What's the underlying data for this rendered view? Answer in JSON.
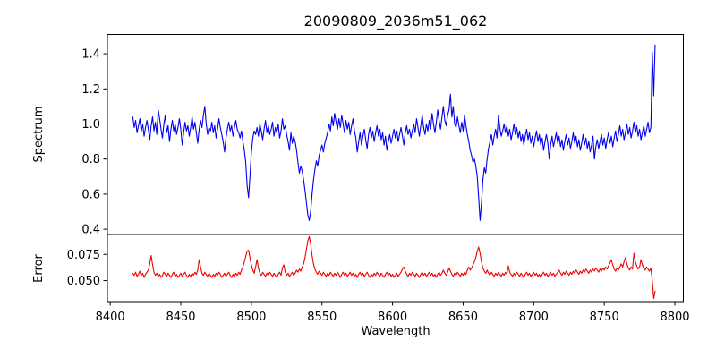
{
  "chart": {
    "title": "20090809_2036m51_062",
    "xlabel": "Wavelength",
    "ylabel_top": "Spectrum",
    "ylabel_bottom": "Error",
    "background_color": "#ffffff",
    "axes_color": "#000000",
    "spectrum_color": "#0000ee",
    "error_color": "#ee0000"
  },
  "chart_data": [
    {
      "type": "line",
      "panel": "spectrum",
      "title": "20090809_2036m51_062",
      "ylabel": "Spectrum",
      "xlabel": "",
      "legend": null,
      "grid": false,
      "line_color": "#0000ee",
      "x_start": 8416,
      "x_step": 1.0,
      "xlim": [
        8398,
        8806
      ],
      "ylim": [
        0.37,
        1.51
      ],
      "yticks": [
        0.4,
        0.6,
        0.8,
        1.0,
        1.2,
        1.4
      ],
      "ytick_labels": [
        "0.4",
        "0.6",
        "0.8",
        "1.0",
        "1.2",
        "1.4"
      ],
      "xticks": [],
      "xtick_labels": [],
      "values": [
        1.04,
        0.98,
        1.02,
        0.95,
        0.99,
        1.03,
        0.96,
        1.0,
        0.93,
        0.98,
        1.02,
        0.97,
        0.91,
        0.99,
        1.04,
        0.96,
        1.01,
        0.94,
        1.08,
        1.03,
        0.97,
        0.92,
        1.0,
        1.05,
        0.95,
        0.99,
        0.9,
        0.97,
        1.02,
        0.96,
        1.0,
        0.94,
        0.98,
        1.03,
        0.97,
        0.88,
        0.95,
        1.01,
        0.96,
        0.99,
        0.93,
        0.98,
        1.04,
        0.97,
        1.01,
        0.95,
        0.89,
        0.97,
        1.02,
        0.98,
        1.05,
        1.1,
        1.0,
        0.94,
        0.98,
        0.96,
        1.01,
        0.95,
        0.99,
        0.92,
        0.97,
        1.03,
        0.98,
        0.94,
        0.9,
        0.84,
        0.92,
        0.97,
        1.01,
        0.96,
        0.99,
        0.93,
        0.98,
        1.02,
        0.97,
        0.95,
        0.92,
        0.96,
        0.9,
        0.85,
        0.78,
        0.65,
        0.58,
        0.7,
        0.84,
        0.92,
        0.96,
        0.94,
        0.98,
        0.93,
        1.0,
        0.96,
        0.91,
        0.97,
        1.02,
        0.95,
        0.99,
        0.94,
        0.97,
        1.01,
        0.93,
        0.98,
        0.95,
        1.0,
        0.92,
        0.96,
        1.03,
        0.97,
        0.99,
        0.94,
        0.9,
        0.85,
        0.95,
        0.89,
        0.93,
        0.9,
        0.85,
        0.78,
        0.72,
        0.76,
        0.73,
        0.68,
        0.62,
        0.55,
        0.48,
        0.45,
        0.5,
        0.6,
        0.68,
        0.74,
        0.79,
        0.76,
        0.82,
        0.85,
        0.88,
        0.84,
        0.89,
        0.92,
        0.95,
        1.0,
        0.96,
        1.04,
        0.99,
        1.06,
        1.01,
        0.97,
        1.03,
        0.98,
        1.05,
        1.0,
        0.95,
        1.02,
        0.97,
        1.01,
        0.94,
        0.99,
        1.03,
        0.96,
        0.92,
        0.84,
        0.9,
        0.95,
        0.88,
        0.93,
        0.97,
        0.91,
        0.86,
        0.94,
        0.98,
        0.92,
        0.96,
        0.9,
        0.95,
        0.99,
        0.93,
        0.97,
        0.91,
        0.95,
        0.88,
        0.93,
        0.85,
        0.9,
        0.94,
        0.89,
        0.93,
        0.97,
        0.92,
        0.96,
        0.9,
        0.94,
        0.98,
        0.93,
        0.88,
        0.95,
        0.99,
        0.94,
        0.97,
        0.92,
        0.96,
        1.0,
        0.95,
        1.03,
        0.98,
        0.93,
        0.99,
        1.05,
        0.98,
        0.94,
        1.0,
        0.96,
        1.02,
        0.97,
        1.06,
        1.0,
        0.95,
        1.01,
        1.08,
        1.02,
        0.97,
        1.04,
        1.1,
        1.02,
        0.99,
        1.05,
        1.08,
        1.17,
        1.04,
        1.1,
        1.0,
        0.98,
        1.04,
        0.99,
        0.95,
        1.01,
        0.96,
        1.05,
        0.99,
        0.94,
        0.9,
        0.85,
        0.82,
        0.78,
        0.8,
        0.76,
        0.7,
        0.58,
        0.45,
        0.55,
        0.68,
        0.75,
        0.72,
        0.8,
        0.86,
        0.9,
        0.94,
        0.88,
        0.93,
        0.97,
        0.92,
        1.05,
        0.98,
        0.93,
        0.96,
        1.0,
        0.95,
        0.99,
        0.93,
        0.97,
        0.91,
        0.95,
        1.0,
        0.94,
        0.98,
        0.92,
        0.96,
        0.9,
        0.94,
        0.88,
        0.93,
        0.97,
        0.91,
        0.95,
        0.89,
        0.93,
        0.87,
        0.92,
        0.96,
        0.9,
        0.94,
        0.88,
        0.92,
        0.85,
        0.9,
        0.94,
        0.89,
        0.8,
        0.88,
        0.93,
        0.87,
        0.91,
        0.95,
        0.89,
        0.93,
        0.87,
        0.91,
        0.85,
        0.9,
        0.94,
        0.88,
        0.92,
        0.86,
        0.9,
        0.95,
        0.89,
        0.93,
        0.87,
        0.91,
        0.85,
        0.89,
        0.94,
        0.88,
        0.92,
        0.86,
        0.9,
        0.84,
        0.88,
        0.93,
        0.8,
        0.87,
        0.91,
        0.86,
        0.9,
        0.94,
        0.88,
        0.92,
        0.86,
        0.91,
        0.95,
        0.89,
        0.93,
        0.87,
        0.92,
        0.96,
        0.9,
        0.94,
        0.99,
        0.93,
        0.97,
        0.91,
        0.95,
        1.0,
        0.94,
        0.98,
        0.92,
        0.96,
        1.01,
        0.95,
        0.99,
        0.93,
        0.97,
        0.91,
        0.95,
        0.99,
        0.93,
        0.97,
        1.01,
        0.95,
        0.98,
        1.41,
        1.16,
        1.45
      ]
    },
    {
      "type": "line",
      "panel": "error",
      "title": "",
      "ylabel": "Error",
      "xlabel": "Wavelength",
      "legend": null,
      "grid": false,
      "line_color": "#ee0000",
      "x_start": 8416,
      "x_step": 1.0,
      "xlim": [
        8398,
        8806
      ],
      "ylim": [
        0.03,
        0.094
      ],
      "yticks": [
        0.05,
        0.075
      ],
      "ytick_labels": [
        "0.050",
        "0.075"
      ],
      "xticks": [
        8400,
        8450,
        8500,
        8550,
        8600,
        8650,
        8700,
        8750,
        8800
      ],
      "xtick_labels": [
        "8400",
        "8450",
        "8500",
        "8550",
        "8600",
        "8650",
        "8700",
        "8750",
        "8800"
      ],
      "values": [
        0.057,
        0.055,
        0.058,
        0.054,
        0.056,
        0.059,
        0.055,
        0.057,
        0.053,
        0.056,
        0.058,
        0.06,
        0.066,
        0.074,
        0.065,
        0.058,
        0.055,
        0.057,
        0.054,
        0.056,
        0.053,
        0.055,
        0.058,
        0.056,
        0.054,
        0.057,
        0.055,
        0.053,
        0.056,
        0.058,
        0.054,
        0.056,
        0.053,
        0.055,
        0.057,
        0.054,
        0.056,
        0.058,
        0.055,
        0.053,
        0.056,
        0.054,
        0.057,
        0.055,
        0.058,
        0.056,
        0.06,
        0.07,
        0.063,
        0.057,
        0.055,
        0.058,
        0.056,
        0.054,
        0.057,
        0.055,
        0.053,
        0.056,
        0.054,
        0.057,
        0.055,
        0.058,
        0.056,
        0.053,
        0.055,
        0.057,
        0.054,
        0.056,
        0.058,
        0.055,
        0.053,
        0.056,
        0.054,
        0.057,
        0.055,
        0.058,
        0.056,
        0.06,
        0.063,
        0.068,
        0.073,
        0.078,
        0.079,
        0.072,
        0.065,
        0.06,
        0.057,
        0.063,
        0.07,
        0.062,
        0.057,
        0.055,
        0.058,
        0.056,
        0.054,
        0.057,
        0.055,
        0.058,
        0.056,
        0.054,
        0.057,
        0.055,
        0.053,
        0.056,
        0.058,
        0.055,
        0.062,
        0.065,
        0.058,
        0.055,
        0.057,
        0.054,
        0.056,
        0.058,
        0.055,
        0.057,
        0.06,
        0.058,
        0.061,
        0.059,
        0.063,
        0.066,
        0.072,
        0.08,
        0.088,
        0.092,
        0.085,
        0.074,
        0.066,
        0.061,
        0.058,
        0.056,
        0.059,
        0.057,
        0.055,
        0.058,
        0.056,
        0.054,
        0.057,
        0.055,
        0.058,
        0.056,
        0.054,
        0.057,
        0.055,
        0.058,
        0.056,
        0.053,
        0.056,
        0.058,
        0.055,
        0.057,
        0.054,
        0.056,
        0.058,
        0.055,
        0.057,
        0.054,
        0.056,
        0.053,
        0.056,
        0.058,
        0.055,
        0.057,
        0.054,
        0.056,
        0.058,
        0.055,
        0.053,
        0.056,
        0.054,
        0.057,
        0.055,
        0.058,
        0.056,
        0.054,
        0.057,
        0.055,
        0.053,
        0.056,
        0.058,
        0.055,
        0.057,
        0.054,
        0.056,
        0.053,
        0.055,
        0.057,
        0.054,
        0.056,
        0.058,
        0.061,
        0.063,
        0.059,
        0.056,
        0.054,
        0.057,
        0.055,
        0.058,
        0.056,
        0.054,
        0.057,
        0.055,
        0.053,
        0.056,
        0.058,
        0.055,
        0.057,
        0.054,
        0.056,
        0.058,
        0.055,
        0.057,
        0.054,
        0.056,
        0.053,
        0.056,
        0.058,
        0.055,
        0.057,
        0.06,
        0.057,
        0.055,
        0.058,
        0.062,
        0.059,
        0.056,
        0.054,
        0.057,
        0.055,
        0.058,
        0.056,
        0.054,
        0.057,
        0.055,
        0.058,
        0.056,
        0.06,
        0.063,
        0.06,
        0.062,
        0.065,
        0.068,
        0.072,
        0.078,
        0.082,
        0.076,
        0.068,
        0.062,
        0.059,
        0.057,
        0.06,
        0.057,
        0.055,
        0.058,
        0.056,
        0.054,
        0.057,
        0.055,
        0.058,
        0.056,
        0.054,
        0.057,
        0.055,
        0.058,
        0.056,
        0.064,
        0.058,
        0.056,
        0.054,
        0.057,
        0.055,
        0.058,
        0.056,
        0.054,
        0.057,
        0.055,
        0.053,
        0.056,
        0.058,
        0.055,
        0.057,
        0.054,
        0.056,
        0.058,
        0.055,
        0.057,
        0.054,
        0.056,
        0.053,
        0.056,
        0.058,
        0.055,
        0.057,
        0.054,
        0.056,
        0.058,
        0.055,
        0.057,
        0.054,
        0.056,
        0.058,
        0.06,
        0.057,
        0.055,
        0.058,
        0.056,
        0.059,
        0.057,
        0.055,
        0.058,
        0.056,
        0.059,
        0.057,
        0.06,
        0.058,
        0.056,
        0.059,
        0.057,
        0.06,
        0.058,
        0.061,
        0.059,
        0.057,
        0.06,
        0.058,
        0.061,
        0.059,
        0.062,
        0.06,
        0.058,
        0.061,
        0.059,
        0.062,
        0.06,
        0.063,
        0.061,
        0.064,
        0.067,
        0.07,
        0.065,
        0.061,
        0.059,
        0.062,
        0.06,
        0.063,
        0.066,
        0.063,
        0.068,
        0.072,
        0.066,
        0.062,
        0.06,
        0.063,
        0.061,
        0.076,
        0.068,
        0.064,
        0.061,
        0.063,
        0.07,
        0.065,
        0.062,
        0.06,
        0.063,
        0.061,
        0.059,
        0.062,
        0.05,
        0.033,
        0.04
      ]
    }
  ]
}
